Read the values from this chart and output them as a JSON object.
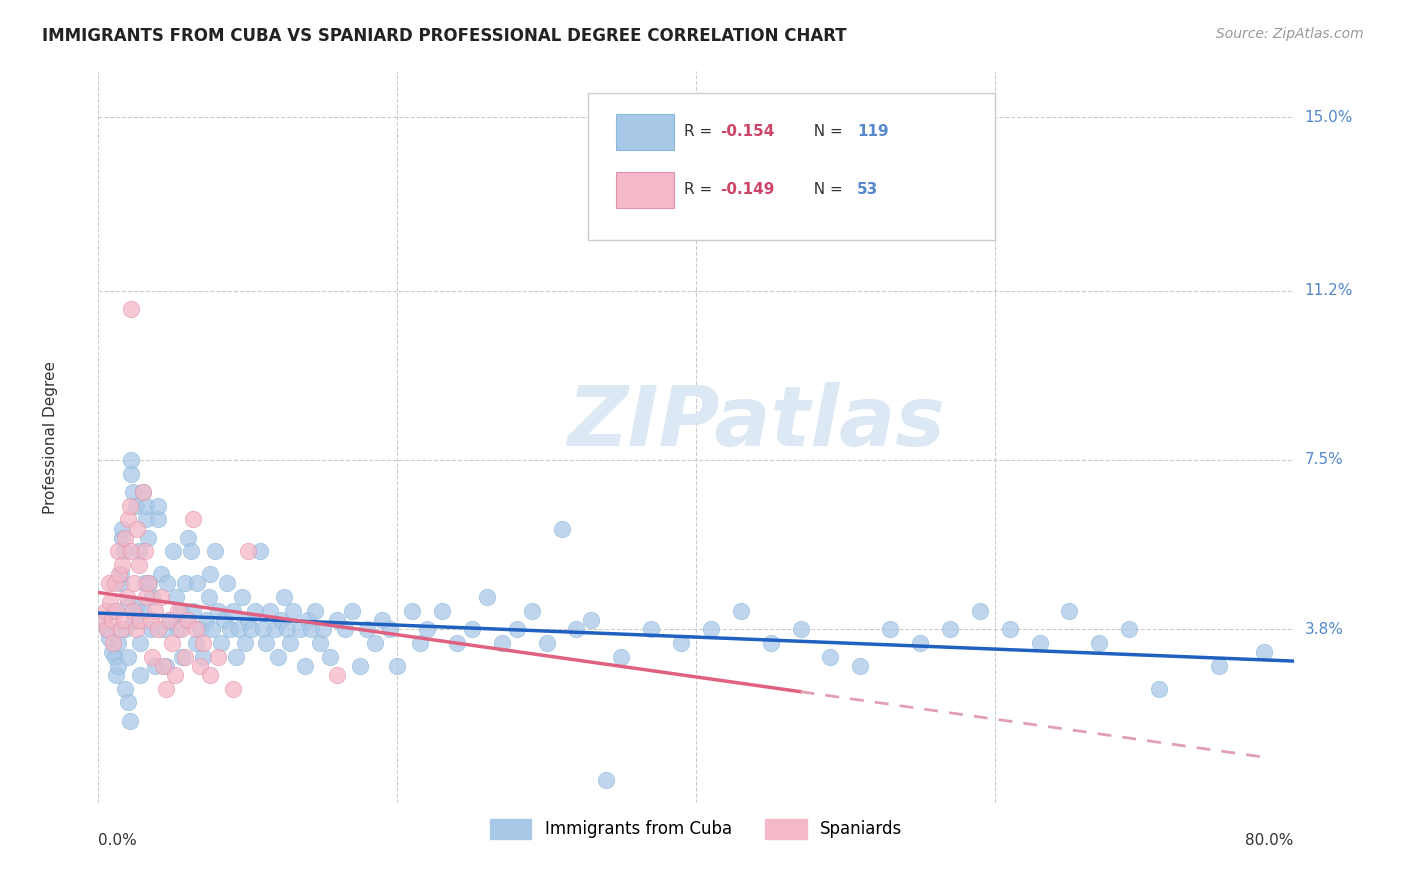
{
  "title": "IMMIGRANTS FROM CUBA VS SPANIARD PROFESSIONAL DEGREE CORRELATION CHART",
  "source": "Source: ZipAtlas.com",
  "ylabel": "Professional Degree",
  "ytick_labels": [
    "15.0%",
    "11.2%",
    "7.5%",
    "3.8%"
  ],
  "ytick_values": [
    0.15,
    0.112,
    0.075,
    0.038
  ],
  "xmin": 0.0,
  "xmax": 0.8,
  "ymin": 0.0,
  "ymax": 0.16,
  "legend_bottom": [
    "Immigrants from Cuba",
    "Spaniards"
  ],
  "legend_bottom_colors": [
    "#a8c8e8",
    "#f4b8c8"
  ],
  "watermark": "ZIPatlas",
  "cuba_color": "#a8c8e8",
  "spain_color": "#f4b8c8",
  "cuba_line_color": "#2060c0",
  "spain_line_solid_color": "#e06080",
  "spain_line_dash_color": "#e0a0b0",
  "cuba_line_x0": 0.0,
  "cuba_line_x1": 0.8,
  "cuba_line_y0": 0.0415,
  "cuba_line_y1": 0.031,
  "spain_line_x0": 0.0,
  "spain_line_x_switch": 0.47,
  "spain_line_x1": 0.78,
  "spain_line_y0": 0.046,
  "spain_line_y1": 0.01,
  "right_label_color": "#5588cc",
  "legend_r_color": "#cc4466",
  "legend_n_color": "#5588cc",
  "cuba_points": [
    [
      0.004,
      0.04
    ],
    [
      0.006,
      0.038
    ],
    [
      0.007,
      0.036
    ],
    [
      0.009,
      0.033
    ],
    [
      0.01,
      0.042
    ],
    [
      0.011,
      0.032
    ],
    [
      0.012,
      0.028
    ],
    [
      0.013,
      0.035
    ],
    [
      0.013,
      0.03
    ],
    [
      0.015,
      0.048
    ],
    [
      0.015,
      0.05
    ],
    [
      0.016,
      0.058
    ],
    [
      0.016,
      0.06
    ],
    [
      0.017,
      0.055
    ],
    [
      0.018,
      0.038
    ],
    [
      0.018,
      0.025
    ],
    [
      0.019,
      0.043
    ],
    [
      0.02,
      0.032
    ],
    [
      0.02,
      0.022
    ],
    [
      0.021,
      0.018
    ],
    [
      0.022,
      0.072
    ],
    [
      0.022,
      0.075
    ],
    [
      0.023,
      0.068
    ],
    [
      0.024,
      0.04
    ],
    [
      0.025,
      0.065
    ],
    [
      0.026,
      0.043
    ],
    [
      0.027,
      0.055
    ],
    [
      0.028,
      0.035
    ],
    [
      0.028,
      0.028
    ],
    [
      0.03,
      0.042
    ],
    [
      0.03,
      0.068
    ],
    [
      0.031,
      0.048
    ],
    [
      0.032,
      0.062
    ],
    [
      0.032,
      0.065
    ],
    [
      0.033,
      0.058
    ],
    [
      0.034,
      0.048
    ],
    [
      0.035,
      0.038
    ],
    [
      0.036,
      0.045
    ],
    [
      0.038,
      0.03
    ],
    [
      0.04,
      0.062
    ],
    [
      0.04,
      0.065
    ],
    [
      0.042,
      0.05
    ],
    [
      0.044,
      0.038
    ],
    [
      0.045,
      0.03
    ],
    [
      0.046,
      0.048
    ],
    [
      0.048,
      0.04
    ],
    [
      0.05,
      0.055
    ],
    [
      0.052,
      0.045
    ],
    [
      0.053,
      0.038
    ],
    [
      0.055,
      0.042
    ],
    [
      0.056,
      0.032
    ],
    [
      0.058,
      0.048
    ],
    [
      0.059,
      0.04
    ],
    [
      0.06,
      0.058
    ],
    [
      0.062,
      0.055
    ],
    [
      0.063,
      0.042
    ],
    [
      0.065,
      0.035
    ],
    [
      0.066,
      0.048
    ],
    [
      0.068,
      0.038
    ],
    [
      0.07,
      0.032
    ],
    [
      0.072,
      0.04
    ],
    [
      0.074,
      0.045
    ],
    [
      0.075,
      0.05
    ],
    [
      0.076,
      0.038
    ],
    [
      0.078,
      0.055
    ],
    [
      0.08,
      0.042
    ],
    [
      0.082,
      0.035
    ],
    [
      0.084,
      0.04
    ],
    [
      0.086,
      0.048
    ],
    [
      0.088,
      0.038
    ],
    [
      0.09,
      0.042
    ],
    [
      0.092,
      0.032
    ],
    [
      0.094,
      0.038
    ],
    [
      0.096,
      0.045
    ],
    [
      0.098,
      0.035
    ],
    [
      0.1,
      0.04
    ],
    [
      0.102,
      0.038
    ],
    [
      0.105,
      0.042
    ],
    [
      0.108,
      0.055
    ],
    [
      0.11,
      0.038
    ],
    [
      0.112,
      0.035
    ],
    [
      0.115,
      0.042
    ],
    [
      0.118,
      0.038
    ],
    [
      0.12,
      0.032
    ],
    [
      0.122,
      0.04
    ],
    [
      0.124,
      0.045
    ],
    [
      0.126,
      0.038
    ],
    [
      0.128,
      0.035
    ],
    [
      0.13,
      0.042
    ],
    [
      0.135,
      0.038
    ],
    [
      0.138,
      0.03
    ],
    [
      0.14,
      0.04
    ],
    [
      0.142,
      0.038
    ],
    [
      0.145,
      0.042
    ],
    [
      0.148,
      0.035
    ],
    [
      0.15,
      0.038
    ],
    [
      0.155,
      0.032
    ],
    [
      0.16,
      0.04
    ],
    [
      0.165,
      0.038
    ],
    [
      0.17,
      0.042
    ],
    [
      0.175,
      0.03
    ],
    [
      0.18,
      0.038
    ],
    [
      0.185,
      0.035
    ],
    [
      0.19,
      0.04
    ],
    [
      0.195,
      0.038
    ],
    [
      0.2,
      0.03
    ],
    [
      0.21,
      0.042
    ],
    [
      0.215,
      0.035
    ],
    [
      0.22,
      0.038
    ],
    [
      0.23,
      0.042
    ],
    [
      0.24,
      0.035
    ],
    [
      0.25,
      0.038
    ],
    [
      0.26,
      0.045
    ],
    [
      0.27,
      0.035
    ],
    [
      0.28,
      0.038
    ],
    [
      0.29,
      0.042
    ],
    [
      0.3,
      0.035
    ],
    [
      0.31,
      0.06
    ],
    [
      0.32,
      0.038
    ],
    [
      0.33,
      0.04
    ],
    [
      0.35,
      0.032
    ],
    [
      0.37,
      0.038
    ],
    [
      0.39,
      0.035
    ],
    [
      0.41,
      0.038
    ],
    [
      0.43,
      0.042
    ],
    [
      0.45,
      0.035
    ],
    [
      0.47,
      0.038
    ],
    [
      0.49,
      0.032
    ],
    [
      0.34,
      0.005
    ],
    [
      0.51,
      0.03
    ],
    [
      0.53,
      0.038
    ],
    [
      0.55,
      0.035
    ],
    [
      0.57,
      0.038
    ],
    [
      0.59,
      0.042
    ],
    [
      0.61,
      0.038
    ],
    [
      0.63,
      0.035
    ],
    [
      0.65,
      0.042
    ],
    [
      0.67,
      0.035
    ],
    [
      0.69,
      0.038
    ],
    [
      0.71,
      0.025
    ],
    [
      0.75,
      0.03
    ],
    [
      0.78,
      0.033
    ]
  ],
  "spain_points": [
    [
      0.003,
      0.04
    ],
    [
      0.005,
      0.042
    ],
    [
      0.006,
      0.038
    ],
    [
      0.007,
      0.048
    ],
    [
      0.008,
      0.044
    ],
    [
      0.009,
      0.04
    ],
    [
      0.01,
      0.035
    ],
    [
      0.011,
      0.048
    ],
    [
      0.012,
      0.042
    ],
    [
      0.013,
      0.055
    ],
    [
      0.014,
      0.05
    ],
    [
      0.015,
      0.038
    ],
    [
      0.016,
      0.052
    ],
    [
      0.017,
      0.04
    ],
    [
      0.018,
      0.058
    ],
    [
      0.019,
      0.045
    ],
    [
      0.02,
      0.062
    ],
    [
      0.021,
      0.065
    ],
    [
      0.022,
      0.055
    ],
    [
      0.022,
      0.108
    ],
    [
      0.023,
      0.042
    ],
    [
      0.024,
      0.048
    ],
    [
      0.025,
      0.038
    ],
    [
      0.026,
      0.06
    ],
    [
      0.027,
      0.052
    ],
    [
      0.028,
      0.04
    ],
    [
      0.03,
      0.068
    ],
    [
      0.031,
      0.055
    ],
    [
      0.032,
      0.045
    ],
    [
      0.033,
      0.048
    ],
    [
      0.035,
      0.04
    ],
    [
      0.036,
      0.032
    ],
    [
      0.038,
      0.042
    ],
    [
      0.04,
      0.038
    ],
    [
      0.042,
      0.045
    ],
    [
      0.043,
      0.03
    ],
    [
      0.045,
      0.025
    ],
    [
      0.047,
      0.04
    ],
    [
      0.049,
      0.035
    ],
    [
      0.051,
      0.028
    ],
    [
      0.053,
      0.042
    ],
    [
      0.055,
      0.038
    ],
    [
      0.058,
      0.032
    ],
    [
      0.06,
      0.04
    ],
    [
      0.063,
      0.062
    ],
    [
      0.065,
      0.038
    ],
    [
      0.068,
      0.03
    ],
    [
      0.07,
      0.035
    ],
    [
      0.075,
      0.028
    ],
    [
      0.08,
      0.032
    ],
    [
      0.09,
      0.025
    ],
    [
      0.1,
      0.055
    ],
    [
      0.16,
      0.028
    ]
  ]
}
